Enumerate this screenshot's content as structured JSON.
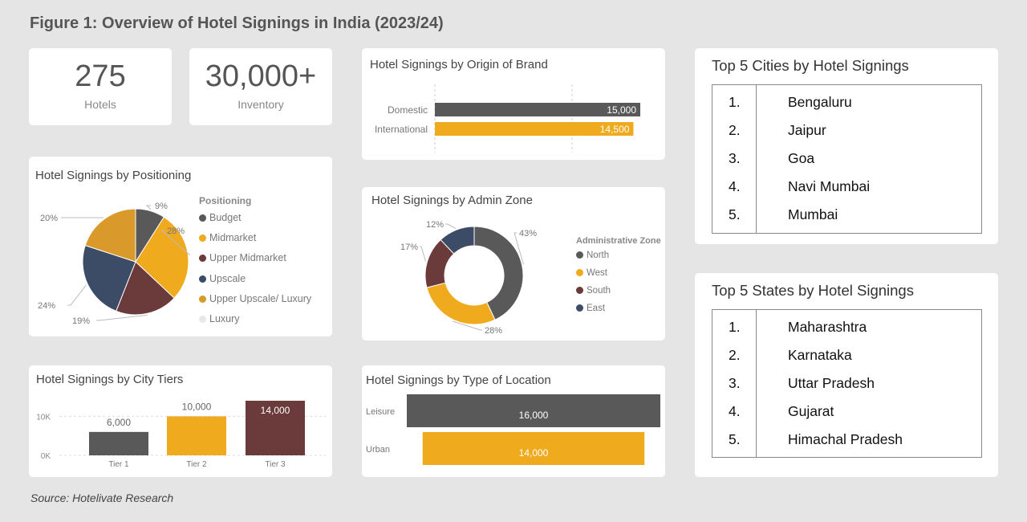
{
  "figure_title": "Figure 1: Overview of Hotel Signings in India (2023/24)",
  "source": "Source: Hotelivate Research",
  "kpis": [
    {
      "value": "275",
      "label": "Hotels"
    },
    {
      "value": "30,000+",
      "label": "Inventory"
    }
  ],
  "colors": {
    "dark_gray": "#595959",
    "amber": "#f0aa1e",
    "maroon": "#6b3a3a",
    "navy": "#3d4c66",
    "gold": "#d99a2b",
    "light_gray": "#e8e8e8",
    "grid": "#cccccc"
  },
  "chart_data": [
    {
      "id": "origin",
      "type": "bar",
      "orientation": "horizontal",
      "title": "Hotel Signings by Origin of Brand",
      "categories": [
        "Domestic",
        "International"
      ],
      "values": [
        15000,
        14500
      ],
      "value_labels": [
        "15,000",
        "14,500"
      ],
      "colors": [
        "#595959",
        "#f0aa1e"
      ],
      "xlim": [
        0,
        15000
      ]
    },
    {
      "id": "positioning",
      "type": "pie",
      "title": "Hotel Signings by Positioning",
      "legend_title": "Positioning",
      "legend_placement": "right",
      "labels": [
        "Budget",
        "Midmarket",
        "Upper Midmarket",
        "Upscale",
        "Upper Upscale/ Luxury",
        "Luxury"
      ],
      "values": [
        9,
        28,
        19,
        24,
        20,
        0
      ],
      "value_labels": [
        "9%",
        "28%",
        "19%",
        "24%",
        "20%",
        ""
      ],
      "colors": [
        "#595959",
        "#f0aa1e",
        "#6b3a3a",
        "#3d4c66",
        "#d99a2b",
        "#e8e8e8"
      ]
    },
    {
      "id": "admin_zone",
      "type": "pie",
      "variant": "donut",
      "title": "Hotel Signings by Admin Zone",
      "legend_title": "Administrative Zone",
      "legend_placement": "right",
      "labels": [
        "North",
        "West",
        "South",
        "East"
      ],
      "values": [
        43,
        28,
        17,
        12
      ],
      "value_labels": [
        "43%",
        "28%",
        "17%",
        "12%"
      ],
      "colors": [
        "#595959",
        "#f0aa1e",
        "#6b3a3a",
        "#3d4c66"
      ]
    },
    {
      "id": "city_tiers",
      "type": "bar",
      "orientation": "vertical",
      "title": "Hotel Signings by City Tiers",
      "categories": [
        "Tier 1",
        "Tier 2",
        "Tier 3"
      ],
      "values": [
        6000,
        10000,
        14000
      ],
      "value_labels": [
        "6,000",
        "10,000",
        "14,000"
      ],
      "colors": [
        "#595959",
        "#f0aa1e",
        "#6b3a3a"
      ],
      "ylim": [
        0,
        14000
      ],
      "y_ticks": [
        0,
        10000
      ],
      "y_tick_labels": [
        "0K",
        "10K"
      ],
      "grid": true
    },
    {
      "id": "location_type",
      "type": "bar",
      "orientation": "horizontal",
      "title": "Hotel Signings by Type of Location",
      "categories": [
        "Leisure",
        "Urban"
      ],
      "values": [
        16000,
        14000
      ],
      "value_labels": [
        "16,000",
        "14,000"
      ],
      "colors": [
        "#595959",
        "#f0aa1e"
      ],
      "xlim": [
        0,
        16000
      ]
    },
    {
      "id": "top_cities",
      "type": "table",
      "title": "Top 5 Cities by Hotel Signings",
      "ranks": [
        "1.",
        "2.",
        "3.",
        "4.",
        "5."
      ],
      "names": [
        "Bengaluru",
        "Jaipur",
        "Goa",
        "Navi Mumbai",
        "Mumbai"
      ]
    },
    {
      "id": "top_states",
      "type": "table",
      "title": "Top 5 States by Hotel Signings",
      "ranks": [
        "1.",
        "2.",
        "3.",
        "4.",
        "5."
      ],
      "names": [
        "Maharashtra",
        "Karnataka",
        "Uttar Pradesh",
        "Gujarat",
        "Himachal Pradesh"
      ]
    }
  ]
}
